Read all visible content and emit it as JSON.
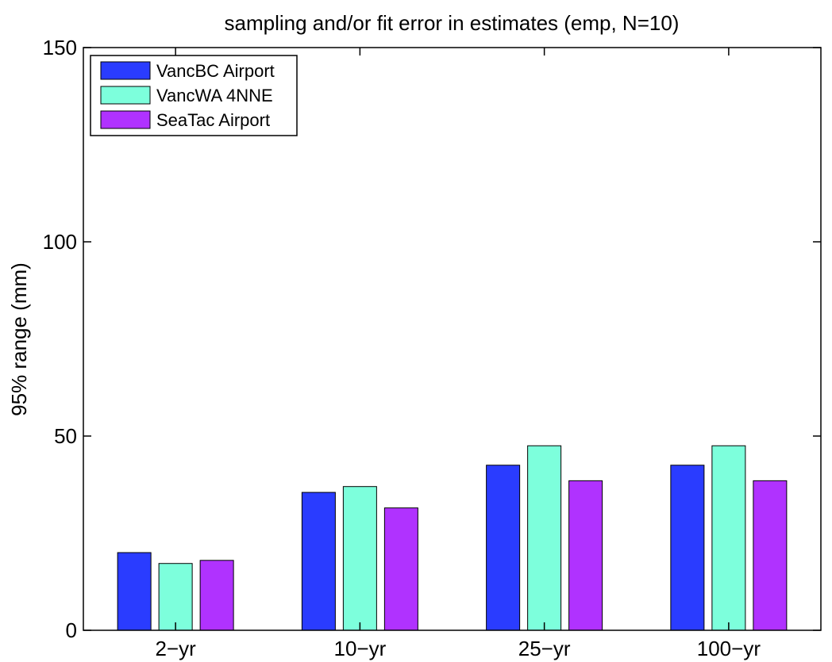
{
  "colors": {
    "VancBC Airport": "#2a3cff",
    "VancWA 4NNE": "#7dffdc",
    "SeaTac Airport": "#b032ff",
    "axis": "#000000",
    "background": "#ffffff"
  },
  "chart_data": {
    "type": "bar",
    "title": "sampling and/or fit error in estimates (emp, N=10)",
    "xlabel": "",
    "ylabel": "95% range (mm)",
    "ylim": [
      0,
      150
    ],
    "yticks": [
      0,
      50,
      100,
      150
    ],
    "grid": false,
    "legend_position": "top-left",
    "categories": [
      "2−yr",
      "10−yr",
      "25−yr",
      "100−yr"
    ],
    "series": [
      {
        "name": "VancBC Airport",
        "values": [
          20,
          35.5,
          42.5,
          42.5
        ]
      },
      {
        "name": "VancWA 4NNE",
        "values": [
          17.2,
          37,
          47.5,
          47.5
        ]
      },
      {
        "name": "SeaTac Airport",
        "values": [
          18,
          31.5,
          38.5,
          38.5
        ]
      }
    ]
  }
}
